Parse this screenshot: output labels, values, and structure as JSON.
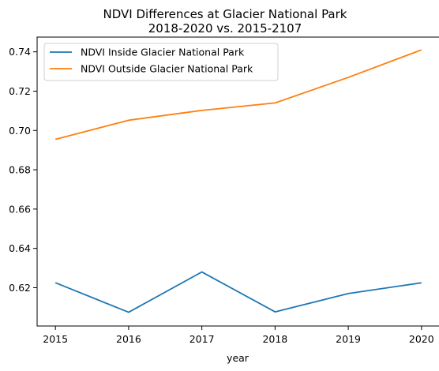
{
  "chart_data": {
    "type": "line",
    "title": "NDVI Differences at Glacier National Park",
    "subtitle": "2018-2020 vs. 2015-2107",
    "xlabel": "year",
    "ylabel": "",
    "x": [
      2015,
      2016,
      2017,
      2018,
      2019,
      2020
    ],
    "x_tick_labels": [
      "2015",
      "2016",
      "2017",
      "2018",
      "2019",
      "2020"
    ],
    "y_tick_labels": [
      "0.62",
      "0.64",
      "0.66",
      "0.68",
      "0.70",
      "0.72",
      "0.74"
    ],
    "y_ticks": [
      0.62,
      0.64,
      0.66,
      0.68,
      0.7,
      0.72,
      0.74
    ],
    "xlim": [
      2014.75,
      2020.25
    ],
    "ylim": [
      0.6005,
      0.7475
    ],
    "grid": false,
    "legend_position": "top-left",
    "series": [
      {
        "name": "NDVI Inside Glacier National Park",
        "color": "#1f77b4",
        "values": [
          0.6225,
          0.6075,
          0.628,
          0.6077,
          0.617,
          0.6225
        ]
      },
      {
        "name": "NDVI Outside Glacier National Park",
        "color": "#ff7f0e",
        "values": [
          0.6955,
          0.7052,
          0.7102,
          0.714,
          0.727,
          0.741
        ]
      }
    ]
  }
}
